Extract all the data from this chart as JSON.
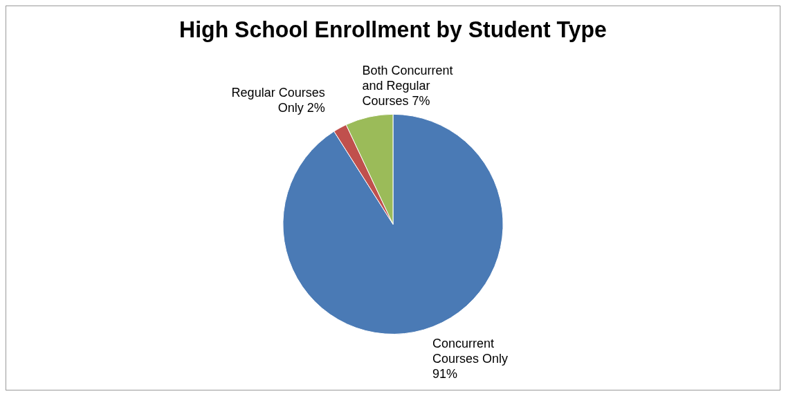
{
  "chart_data": {
    "type": "pie",
    "title": "High School Enrollment by Student Type",
    "categories": [
      "Concurrent Courses Only",
      "Regular Courses Only",
      "Both Concurrent and Regular Courses"
    ],
    "values": [
      91,
      2,
      7
    ],
    "value_labels": [
      "91%",
      "2%",
      "7%"
    ],
    "colors": [
      "#4a7ab5",
      "#c0504d",
      "#9bbb59"
    ],
    "legend": false
  }
}
